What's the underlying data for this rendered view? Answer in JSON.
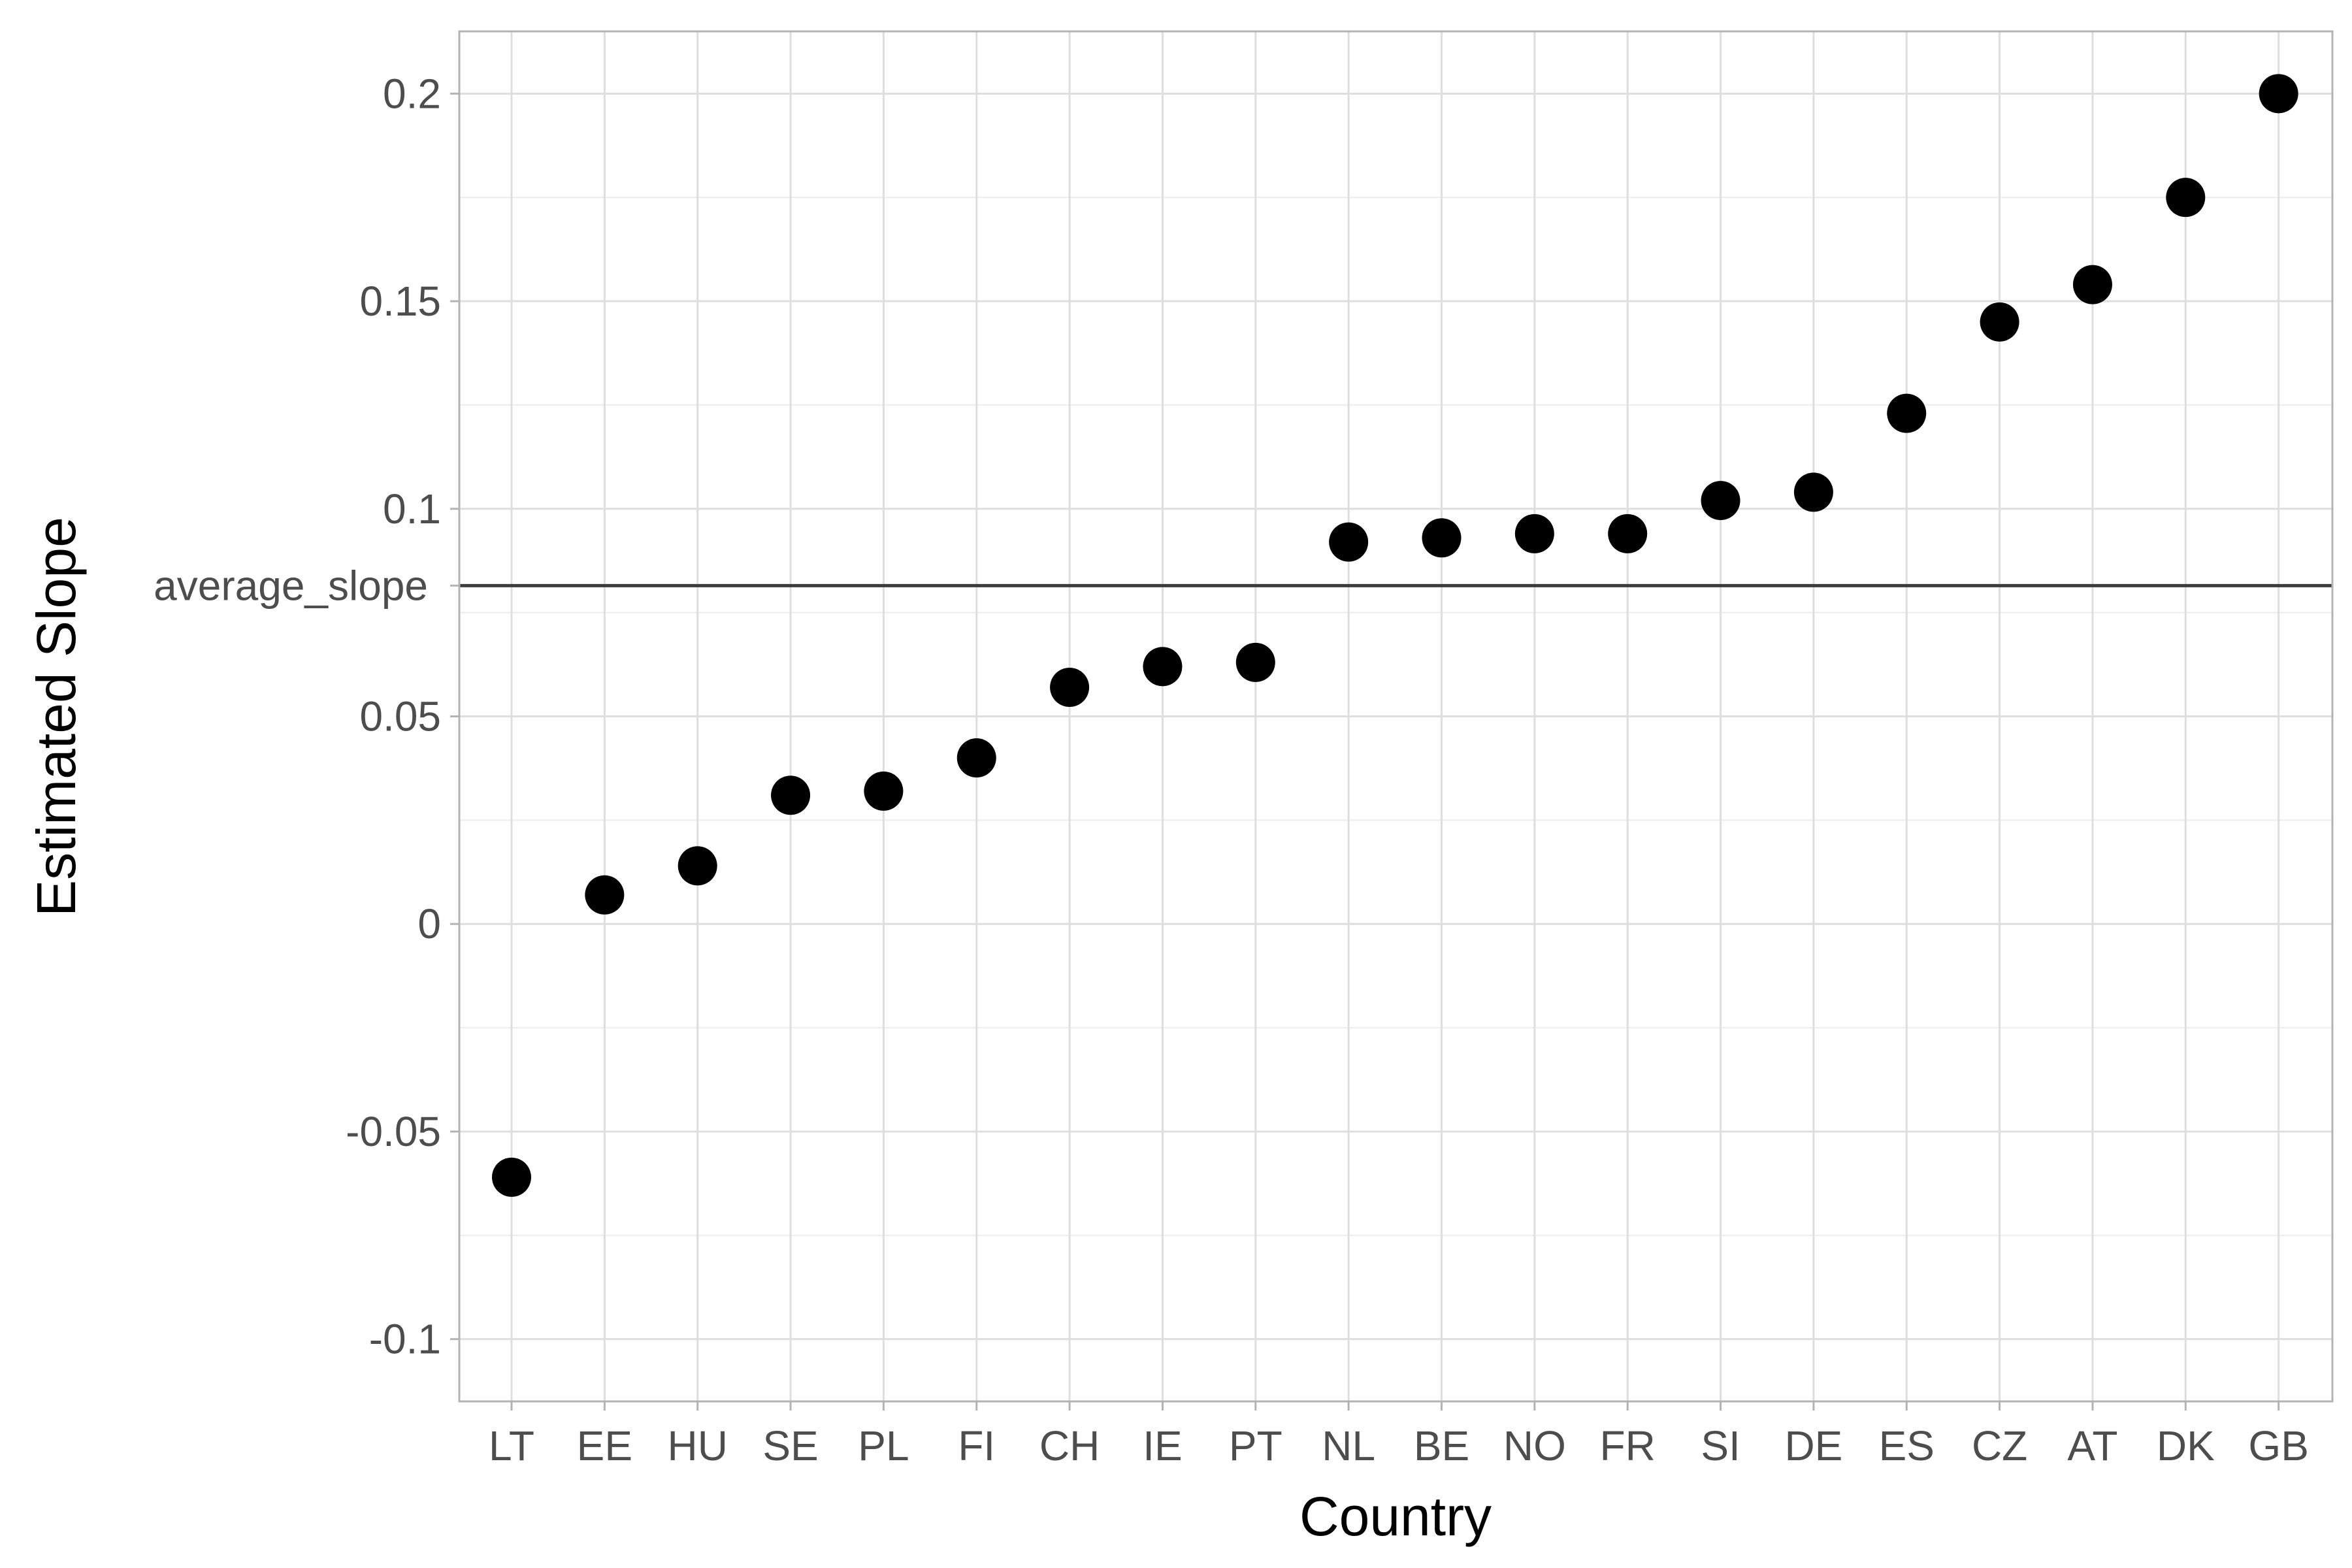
{
  "chart_data": {
    "type": "scatter",
    "xlabel": "Country",
    "ylabel": "Estimated Slope",
    "categories": [
      "LT",
      "EE",
      "HU",
      "SE",
      "PL",
      "FI",
      "CH",
      "IE",
      "PT",
      "NL",
      "BE",
      "NO",
      "FR",
      "SI",
      "DE",
      "ES",
      "CZ",
      "AT",
      "DK",
      "GB"
    ],
    "values": [
      -0.061,
      0.007,
      0.014,
      0.031,
      0.032,
      0.04,
      0.057,
      0.062,
      0.063,
      0.092,
      0.093,
      0.094,
      0.094,
      0.102,
      0.104,
      0.123,
      0.145,
      0.154,
      0.175,
      0.2
    ],
    "ylim": [
      -0.115,
      0.215
    ],
    "y_ticks": [
      -0.1,
      -0.05,
      0,
      0.05,
      0.1,
      0.15,
      0.2
    ],
    "y_tick_labels": [
      "-0.1",
      "-0.05",
      "0",
      "0.05",
      "0.1",
      "0.15",
      "0.2"
    ],
    "reference_line": {
      "label": "average_slope",
      "value": 0.0815
    },
    "grid": true,
    "colors": {
      "points": "#000000",
      "grid_major": "#dedede",
      "grid_minor": "#efefef",
      "panel_border": "#b3b3b3",
      "reference_line": "#3c3c3c",
      "tick_text": "#4d4d4d",
      "title_text": "#000000"
    }
  }
}
